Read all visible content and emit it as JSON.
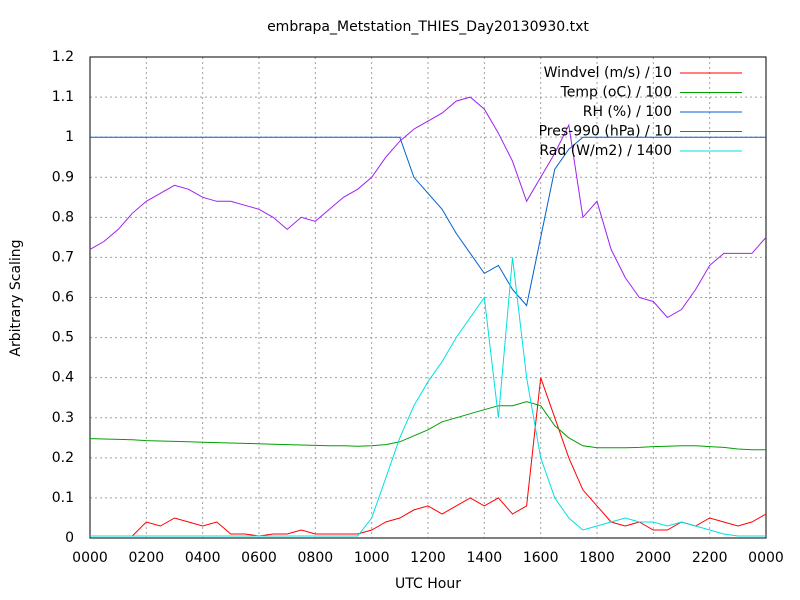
{
  "chart_data": {
    "type": "line",
    "title": "embrapa_Metstation_THIES_Day20130930.txt",
    "xlabel": "UTC Hour",
    "ylabel": "Arbitrary Scaling",
    "x": [
      0,
      0.5,
      1,
      1.5,
      2,
      2.5,
      3,
      3.5,
      4,
      4.5,
      5,
      5.5,
      6,
      6.5,
      7,
      7.5,
      8,
      8.5,
      9,
      9.5,
      10,
      10.5,
      11,
      11.5,
      12,
      12.5,
      13,
      13.5,
      14,
      14.5,
      15,
      15.5,
      16,
      16.5,
      17,
      17.5,
      18,
      18.5,
      19,
      19.5,
      20,
      20.5,
      21,
      21.5,
      22,
      22.5,
      23,
      23.5,
      24
    ],
    "series": [
      {
        "name": "Windvel (m/s) / 10",
        "color": "#ff0000",
        "values": [
          0.005,
          0.005,
          0.005,
          0.005,
          0.04,
          0.03,
          0.05,
          0.04,
          0.03,
          0.04,
          0.01,
          0.01,
          0.005,
          0.01,
          0.01,
          0.02,
          0.01,
          0.01,
          0.01,
          0.01,
          0.02,
          0.04,
          0.05,
          0.07,
          0.08,
          0.06,
          0.08,
          0.1,
          0.08,
          0.1,
          0.06,
          0.08,
          0.4,
          0.3,
          0.2,
          0.12,
          0.08,
          0.04,
          0.03,
          0.04,
          0.02,
          0.02,
          0.04,
          0.03,
          0.05,
          0.04,
          0.03,
          0.04,
          0.06
        ]
      },
      {
        "name": "Temp (oC) / 100",
        "color": "#00a000",
        "values": [
          0.248,
          0.247,
          0.246,
          0.245,
          0.243,
          0.242,
          0.241,
          0.24,
          0.239,
          0.238,
          0.237,
          0.236,
          0.235,
          0.234,
          0.233,
          0.232,
          0.231,
          0.23,
          0.23,
          0.229,
          0.23,
          0.233,
          0.24,
          0.255,
          0.27,
          0.29,
          0.3,
          0.31,
          0.32,
          0.33,
          0.33,
          0.34,
          0.33,
          0.28,
          0.25,
          0.23,
          0.225,
          0.225,
          0.225,
          0.226,
          0.228,
          0.229,
          0.23,
          0.23,
          0.228,
          0.226,
          0.222,
          0.22,
          0.22
        ]
      },
      {
        "name": "RH (%) / 100",
        "color": "#0060d0",
        "values": [
          1,
          1,
          1,
          1,
          1,
          1,
          1,
          1,
          1,
          1,
          1,
          1,
          1,
          1,
          1,
          1,
          1,
          1,
          1,
          1,
          1,
          1,
          1,
          0.9,
          0.86,
          0.82,
          0.76,
          0.71,
          0.66,
          0.68,
          0.62,
          0.58,
          0.75,
          0.92,
          0.97,
          1,
          1,
          1,
          1,
          1,
          1,
          1,
          1,
          1,
          1,
          1,
          1,
          1,
          1
        ]
      },
      {
        "name": "Pres-990 (hPa) / 10",
        "color": "#a020f0",
        "values": [
          0.72,
          0.74,
          0.77,
          0.81,
          0.84,
          0.86,
          0.88,
          0.87,
          0.85,
          0.84,
          0.84,
          0.83,
          0.82,
          0.8,
          0.77,
          0.8,
          0.79,
          0.82,
          0.85,
          0.87,
          0.9,
          0.95,
          0.99,
          1.02,
          1.04,
          1.06,
          1.09,
          1.1,
          1.07,
          1.01,
          0.94,
          0.84,
          0.9,
          0.96,
          1.03,
          0.8,
          0.84,
          0.72,
          0.65,
          0.6,
          0.59,
          0.55,
          0.57,
          0.62,
          0.68,
          0.71,
          0.71,
          0.71,
          0.75
        ]
      },
      {
        "name": "Rad (W/m2) / 1400",
        "color": "#00e0e0",
        "values": [
          0.005,
          0.005,
          0.005,
          0.005,
          0.005,
          0.005,
          0.005,
          0.005,
          0.005,
          0.005,
          0.005,
          0.005,
          0.005,
          0.005,
          0.005,
          0.005,
          0.005,
          0.005,
          0.005,
          0.005,
          0.05,
          0.15,
          0.25,
          0.33,
          0.39,
          0.44,
          0.5,
          0.55,
          0.6,
          0.3,
          0.7,
          0.4,
          0.2,
          0.1,
          0.05,
          0.02,
          0.03,
          0.04,
          0.05,
          0.04,
          0.04,
          0.03,
          0.04,
          0.03,
          0.02,
          0.01,
          0.005,
          0.005,
          0.005
        ]
      }
    ],
    "xlim": [
      0,
      24
    ],
    "xticks": [
      {
        "value": 0,
        "label": "0000"
      },
      {
        "value": 2,
        "label": "0200"
      },
      {
        "value": 4,
        "label": "0400"
      },
      {
        "value": 6,
        "label": "0600"
      },
      {
        "value": 8,
        "label": "0800"
      },
      {
        "value": 10,
        "label": "1000"
      },
      {
        "value": 12,
        "label": "1200"
      },
      {
        "value": 14,
        "label": "1400"
      },
      {
        "value": 16,
        "label": "1600"
      },
      {
        "value": 18,
        "label": "1800"
      },
      {
        "value": 20,
        "label": "2000"
      },
      {
        "value": 22,
        "label": "2200"
      },
      {
        "value": 24,
        "label": "0000"
      }
    ],
    "ylim": [
      0,
      1.2
    ],
    "yticks": [
      0,
      0.1,
      0.2,
      0.3,
      0.4,
      0.5,
      0.6,
      0.7,
      0.8,
      0.9,
      1,
      1.1,
      1.2
    ],
    "grid": true,
    "legend": "top-right"
  }
}
